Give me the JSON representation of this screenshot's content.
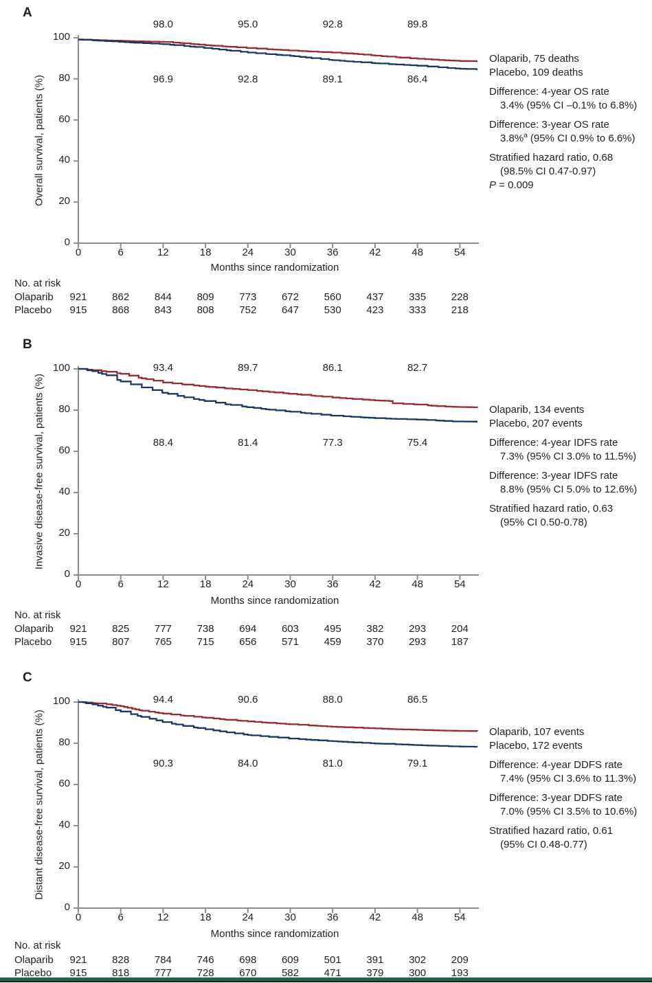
{
  "colors": {
    "olaparib_red": "#9E282E",
    "placebo_blue": "#183769",
    "axis_gray": "#8C8C8C",
    "text": "#231F20",
    "footer_green": "#1B6840"
  },
  "chart_data": [
    {
      "type": "line",
      "panel": "A",
      "outcome": "Overall survival",
      "ylabel": "Overall survival, patients (%)",
      "xlabel": "Months since randomization",
      "x_ticks": [
        0,
        6,
        12,
        18,
        24,
        30,
        36,
        42,
        48,
        54
      ],
      "y_ticks": [
        0,
        20,
        40,
        60,
        80,
        100
      ],
      "xlim": [
        0,
        57
      ],
      "ylim": [
        0,
        100
      ],
      "annotation_months": [
        12,
        24,
        36,
        48
      ],
      "series": [
        {
          "name": "Olaparib",
          "annotated_rates": [
            "98.0",
            "95.0",
            "92.8",
            "89.8"
          ],
          "curve": [
            [
              0,
              99.2
            ],
            [
              4,
              98.7
            ],
            [
              8,
              98.3
            ],
            [
              12,
              98.0
            ],
            [
              15,
              97.3
            ],
            [
              18,
              96.4
            ],
            [
              21,
              95.7
            ],
            [
              24,
              95.0
            ],
            [
              27,
              94.4
            ],
            [
              30,
              93.8
            ],
            [
              33,
              93.3
            ],
            [
              36,
              92.8
            ],
            [
              39,
              92.2
            ],
            [
              42,
              91.3
            ],
            [
              45,
              90.5
            ],
            [
              48,
              89.8
            ],
            [
              51,
              89.2
            ],
            [
              54,
              88.7
            ],
            [
              56.5,
              88.6
            ]
          ]
        },
        {
          "name": "Placebo",
          "annotated_rates": [
            "96.9",
            "92.8",
            "89.1",
            "86.4"
          ],
          "curve": [
            [
              0,
              99.1
            ],
            [
              4,
              98.4
            ],
            [
              8,
              97.6
            ],
            [
              12,
              96.9
            ],
            [
              15,
              96.0
            ],
            [
              18,
              95.0
            ],
            [
              21,
              93.9
            ],
            [
              24,
              92.8
            ],
            [
              27,
              92.0
            ],
            [
              30,
              91.2
            ],
            [
              33,
              90.1
            ],
            [
              36,
              89.1
            ],
            [
              39,
              88.3
            ],
            [
              42,
              87.6
            ],
            [
              45,
              87.0
            ],
            [
              48,
              86.4
            ],
            [
              51,
              85.6
            ],
            [
              54,
              84.9
            ],
            [
              56.5,
              84.7
            ]
          ]
        }
      ],
      "side_text": [
        {
          "t": "Olaparib, 75 deaths"
        },
        {
          "t": "Placebo, 109 deaths"
        },
        {
          "t": "Difference: 4-year OS rate"
        },
        {
          "t": "3.4% (95% CI –0.1% to 6.8%)"
        },
        {
          "t": "Difference: 3-year OS rate"
        },
        {
          "pre": "3.8%",
          "sup": "a",
          "post": " (95% CI 0.9% to 6.6%)"
        },
        {
          "t": "Stratified hazard ratio, 0.68"
        },
        {
          "t": "(98.5% CI 0.47-0.97)"
        },
        {
          "it": "P",
          "rest": " = 0.009"
        }
      ],
      "at_risk_label": "No. at risk",
      "at_risk": [
        {
          "label": "Olaparib",
          "values": [
            921,
            862,
            844,
            809,
            773,
            672,
            560,
            437,
            335,
            228
          ]
        },
        {
          "label": "Placebo",
          "values": [
            915,
            868,
            843,
            808,
            752,
            647,
            530,
            423,
            333,
            218
          ]
        }
      ]
    },
    {
      "type": "line",
      "panel": "B",
      "outcome": "Invasive disease-free survival",
      "ylabel": "Invasive disease-free survival, patients (%)",
      "xlabel": "Months since randomization",
      "x_ticks": [
        0,
        6,
        12,
        18,
        24,
        30,
        36,
        42,
        48,
        54
      ],
      "y_ticks": [
        0,
        20,
        40,
        60,
        80,
        100
      ],
      "xlim": [
        0,
        57
      ],
      "ylim": [
        0,
        100
      ],
      "annotation_months": [
        12,
        24,
        36,
        48
      ],
      "series": [
        {
          "name": "Olaparib",
          "annotated_rates": [
            "93.4",
            "89.7",
            "86.1",
            "82.7"
          ],
          "curve": [
            [
              0,
              100
            ],
            [
              2,
              99.4
            ],
            [
              4,
              98.6
            ],
            [
              6,
              97.6
            ],
            [
              9,
              95.4
            ],
            [
              12,
              93.4
            ],
            [
              15,
              92.4
            ],
            [
              18,
              91.4
            ],
            [
              21,
              90.5
            ],
            [
              24,
              89.7
            ],
            [
              27,
              88.8
            ],
            [
              30,
              87.9
            ],
            [
              33,
              87.0
            ],
            [
              36,
              86.1
            ],
            [
              39,
              85.4
            ],
            [
              42,
              84.7
            ],
            [
              44,
              84.4
            ],
            [
              44.5,
              83.3
            ],
            [
              46,
              83.0
            ],
            [
              48,
              82.7
            ],
            [
              50,
              82.1
            ],
            [
              52,
              81.7
            ],
            [
              54,
              81.5
            ],
            [
              56.5,
              81.3
            ]
          ]
        },
        {
          "name": "Placebo",
          "annotated_rates": [
            "88.4",
            "81.4",
            "77.3",
            "75.4"
          ],
          "curve": [
            [
              0,
              100
            ],
            [
              2,
              98.9
            ],
            [
              4,
              96.9
            ],
            [
              6,
              93.9
            ],
            [
              9,
              91.0
            ],
            [
              12,
              88.4
            ],
            [
              15,
              86.2
            ],
            [
              18,
              84.4
            ],
            [
              21,
              82.8
            ],
            [
              24,
              81.4
            ],
            [
              27,
              80.2
            ],
            [
              30,
              79.2
            ],
            [
              33,
              78.2
            ],
            [
              36,
              77.3
            ],
            [
              39,
              76.7
            ],
            [
              42,
              76.1
            ],
            [
              45,
              75.7
            ],
            [
              48,
              75.4
            ],
            [
              51,
              74.9
            ],
            [
              53,
              74.5
            ],
            [
              56.5,
              74.4
            ]
          ]
        }
      ],
      "side_text": [
        {
          "t": "Olaparib, 134 events"
        },
        {
          "t": "Placebo, 207 events"
        },
        {
          "t": "Difference: 4-year IDFS rate"
        },
        {
          "t": "7.3% (95% CI 3.0% to 11.5%)"
        },
        {
          "t": "Difference: 3-year IDFS rate"
        },
        {
          "t": "8.8% (95% CI 5.0% to 12.6%)"
        },
        {
          "t": "Stratified hazard ratio, 0.63"
        },
        {
          "t": "(95% CI 0.50-0.78)"
        }
      ],
      "at_risk_label": "No. at risk",
      "at_risk": [
        {
          "label": "Olaparib",
          "values": [
            921,
            825,
            777,
            738,
            694,
            603,
            495,
            382,
            293,
            204
          ]
        },
        {
          "label": "Placebo",
          "values": [
            915,
            807,
            765,
            715,
            656,
            571,
            459,
            370,
            293,
            187
          ]
        }
      ]
    },
    {
      "type": "line",
      "panel": "C",
      "outcome": "Distant disease-free survival",
      "ylabel": "Distant disease-free survival, patients (%)",
      "xlabel": "Months since randomization",
      "x_ticks": [
        0,
        6,
        12,
        18,
        24,
        30,
        36,
        42,
        48,
        54
      ],
      "y_ticks": [
        0,
        20,
        40,
        60,
        80,
        100
      ],
      "xlim": [
        0,
        57
      ],
      "ylim": [
        0,
        100
      ],
      "annotation_months": [
        12,
        24,
        36,
        48
      ],
      "series": [
        {
          "name": "Olaparib",
          "annotated_rates": [
            "94.4",
            "90.6",
            "88.0",
            "86.5"
          ],
          "curve": [
            [
              0,
              100
            ],
            [
              2,
              99.5
            ],
            [
              4,
              98.9
            ],
            [
              6,
              98.0
            ],
            [
              7,
              97.2
            ],
            [
              9,
              95.8
            ],
            [
              12,
              94.4
            ],
            [
              15,
              93.3
            ],
            [
              18,
              92.4
            ],
            [
              21,
              91.4
            ],
            [
              24,
              90.6
            ],
            [
              27,
              89.9
            ],
            [
              30,
              89.2
            ],
            [
              33,
              88.6
            ],
            [
              36,
              88.0
            ],
            [
              39,
              87.6
            ],
            [
              42,
              87.2
            ],
            [
              45,
              86.8
            ],
            [
              48,
              86.5
            ],
            [
              51,
              86.2
            ],
            [
              54,
              86.0
            ],
            [
              56.5,
              85.9
            ]
          ]
        },
        {
          "name": "Placebo",
          "annotated_rates": [
            "90.3",
            "84.0",
            "81.0",
            "79.1"
          ],
          "curve": [
            [
              0,
              100
            ],
            [
              2,
              98.9
            ],
            [
              4,
              97.3
            ],
            [
              6,
              95.4
            ],
            [
              9,
              92.8
            ],
            [
              12,
              90.3
            ],
            [
              15,
              88.4
            ],
            [
              18,
              86.8
            ],
            [
              21,
              85.3
            ],
            [
              24,
              84.0
            ],
            [
              27,
              83.1
            ],
            [
              30,
              82.3
            ],
            [
              33,
              81.6
            ],
            [
              36,
              81.0
            ],
            [
              39,
              80.4
            ],
            [
              42,
              79.9
            ],
            [
              45,
              79.5
            ],
            [
              48,
              79.1
            ],
            [
              51,
              78.7
            ],
            [
              54,
              78.4
            ],
            [
              56.5,
              78.3
            ]
          ]
        }
      ],
      "side_text": [
        {
          "t": "Olaparib, 107 events"
        },
        {
          "t": "Placebo, 172 events"
        },
        {
          "t": "Difference: 4-year DDFS rate"
        },
        {
          "t": "7.4% (95% CI 3.6% to 11.3%)"
        },
        {
          "t": "Difference: 3-year DDFS rate"
        },
        {
          "t": "7.0% (95% CI 3.5% to 10.6%)"
        },
        {
          "t": "Stratified hazard ratio, 0.61"
        },
        {
          "t": "(95% CI 0.48-0.77)"
        }
      ],
      "at_risk_label": "No. at risk",
      "at_risk": [
        {
          "label": "Olaparib",
          "values": [
            921,
            828,
            784,
            746,
            698,
            609,
            501,
            391,
            302,
            209
          ]
        },
        {
          "label": "Placebo",
          "values": [
            915,
            818,
            777,
            728,
            670,
            582,
            471,
            379,
            300,
            193
          ]
        }
      ]
    }
  ]
}
